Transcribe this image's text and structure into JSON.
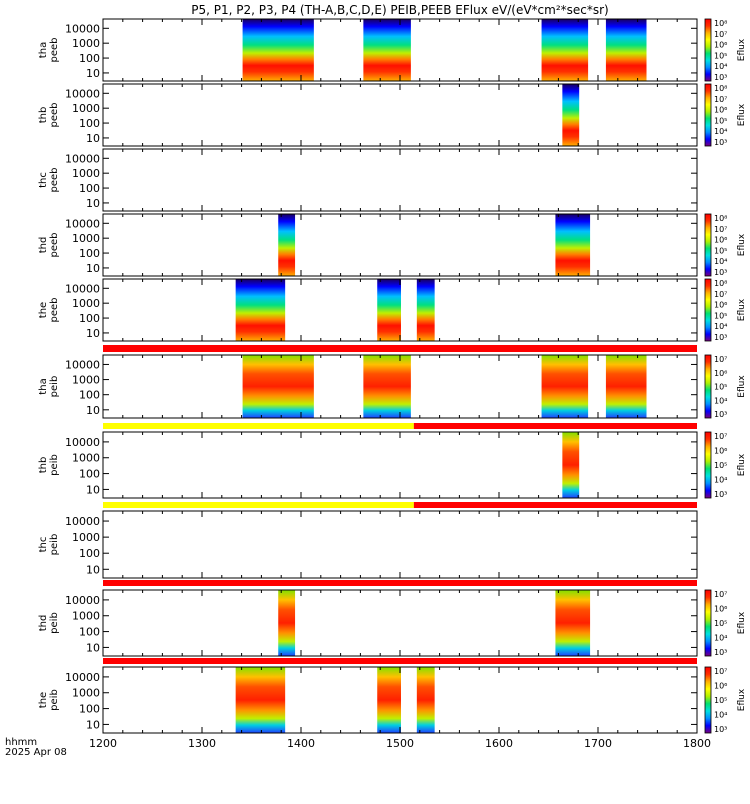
{
  "title": "P5, P1, P2, P3, P4 (TH-A,B,C,D,E) PEIB,PEEB EFlux eV/(eV*cm²*sec*sr)",
  "colors": {
    "flag_red": "#ff0000",
    "flag_yellow": "#ffff00",
    "colorbar": [
      "#7a007a",
      "#0000ff",
      "#0090ff",
      "#00e0e0",
      "#00e070",
      "#b0f000",
      "#ffff00",
      "#ffb000",
      "#ff3000",
      "#ff0000"
    ]
  },
  "chart_data": {
    "type": "heatmap",
    "x_range": [
      1200,
      1800
    ],
    "x_ticks": [
      "1200",
      "1300",
      "1400",
      "1500",
      "1600",
      "1700",
      "1800"
    ],
    "x_label_lines": [
      "hhmm",
      "2025 Apr 08"
    ],
    "y_scale": "log",
    "y_ticks": [
      "10",
      "100",
      "1000",
      "10000"
    ],
    "panels": [
      {
        "id": "tha-peeb",
        "label_lines": [
          "tha",
          "peeb"
        ],
        "colorbar": {
          "label": "Eflux",
          "ticks": [
            "10³",
            "10⁴",
            "10⁵",
            "10⁶",
            "10⁷",
            "10⁸"
          ]
        },
        "intervals": [
          [
            1341,
            1413
          ],
          [
            1463,
            1511
          ],
          [
            1643,
            1690
          ],
          [
            1708,
            1749
          ]
        ]
      },
      {
        "id": "thb-peeb",
        "label_lines": [
          "thb",
          "peeb"
        ],
        "colorbar": {
          "label": "Eflux",
          "ticks": [
            "10³",
            "10⁴",
            "10⁵",
            "10⁶",
            "10⁷",
            "10⁸"
          ]
        },
        "intervals": [
          [
            1664,
            1681
          ]
        ]
      },
      {
        "id": "thc-peeb",
        "label_lines": [
          "thc",
          "peeb"
        ],
        "colorbar": null,
        "intervals": []
      },
      {
        "id": "thd-peeb",
        "label_lines": [
          "thd",
          "peeb"
        ],
        "colorbar": {
          "label": "Eflux",
          "ticks": [
            "10³",
            "10⁴",
            "10⁵",
            "10⁶",
            "10⁷",
            "10⁸"
          ]
        },
        "intervals": [
          [
            1377,
            1394
          ],
          [
            1657,
            1692
          ]
        ]
      },
      {
        "id": "the-peeb",
        "label_lines": [
          "the",
          "peeb"
        ],
        "colorbar": {
          "label": "Eflux",
          "ticks": [
            "10³",
            "10⁴",
            "10⁵",
            "10⁶",
            "10⁷",
            "10⁸"
          ]
        },
        "intervals": [
          [
            1334,
            1384
          ],
          [
            1477,
            1501
          ],
          [
            1517,
            1535
          ]
        ]
      },
      {
        "id": "tha-peib",
        "label_lines": [
          "tha",
          "peib"
        ],
        "colorbar": {
          "label": "Eflux",
          "ticks": [
            "10³",
            "10⁴",
            "10⁵",
            "10⁶",
            "10⁷"
          ]
        },
        "intervals": [
          [
            1341,
            1413
          ],
          [
            1463,
            1511
          ],
          [
            1643,
            1690
          ],
          [
            1708,
            1749
          ]
        ]
      },
      {
        "id": "thb-peib",
        "label_lines": [
          "thb",
          "peib"
        ],
        "colorbar": {
          "label": "Eflux",
          "ticks": [
            "10³",
            "10⁴",
            "10⁵",
            "10⁶",
            "10⁷"
          ]
        },
        "intervals": [
          [
            1664,
            1681
          ]
        ]
      },
      {
        "id": "thc-peib",
        "label_lines": [
          "thc",
          "peib"
        ],
        "colorbar": null,
        "intervals": []
      },
      {
        "id": "thd-peib",
        "label_lines": [
          "thd",
          "peib"
        ],
        "colorbar": {
          "label": "Eflux",
          "ticks": [
            "10³",
            "10⁴",
            "10⁵",
            "10⁶",
            "10⁷"
          ]
        },
        "intervals": [
          [
            1377,
            1394
          ],
          [
            1657,
            1692
          ]
        ]
      },
      {
        "id": "the-peib",
        "label_lines": [
          "the",
          "peib"
        ],
        "colorbar": {
          "label": "Eflux",
          "ticks": [
            "10³",
            "10⁴",
            "10⁵",
            "10⁶",
            "10⁷"
          ]
        },
        "intervals": [
          [
            1334,
            1384
          ],
          [
            1477,
            1501
          ],
          [
            1517,
            1535
          ]
        ]
      }
    ],
    "flag_bars": [
      {
        "id": "flag-1",
        "segments": [
          {
            "from": 1200,
            "to": 1800,
            "color": "red"
          }
        ]
      },
      {
        "id": "flag-2",
        "segments": [
          {
            "from": 1200,
            "to": 1514,
            "color": "yellow"
          },
          {
            "from": 1514,
            "to": 1800,
            "color": "red"
          }
        ]
      },
      {
        "id": "flag-3",
        "segments": [
          {
            "from": 1200,
            "to": 1514,
            "color": "yellow"
          },
          {
            "from": 1514,
            "to": 1800,
            "color": "red"
          }
        ]
      },
      {
        "id": "flag-4",
        "segments": [
          {
            "from": 1200,
            "to": 1800,
            "color": "red"
          }
        ]
      },
      {
        "id": "flag-5",
        "segments": [
          {
            "from": 1200,
            "to": 1800,
            "color": "red"
          }
        ]
      }
    ]
  }
}
